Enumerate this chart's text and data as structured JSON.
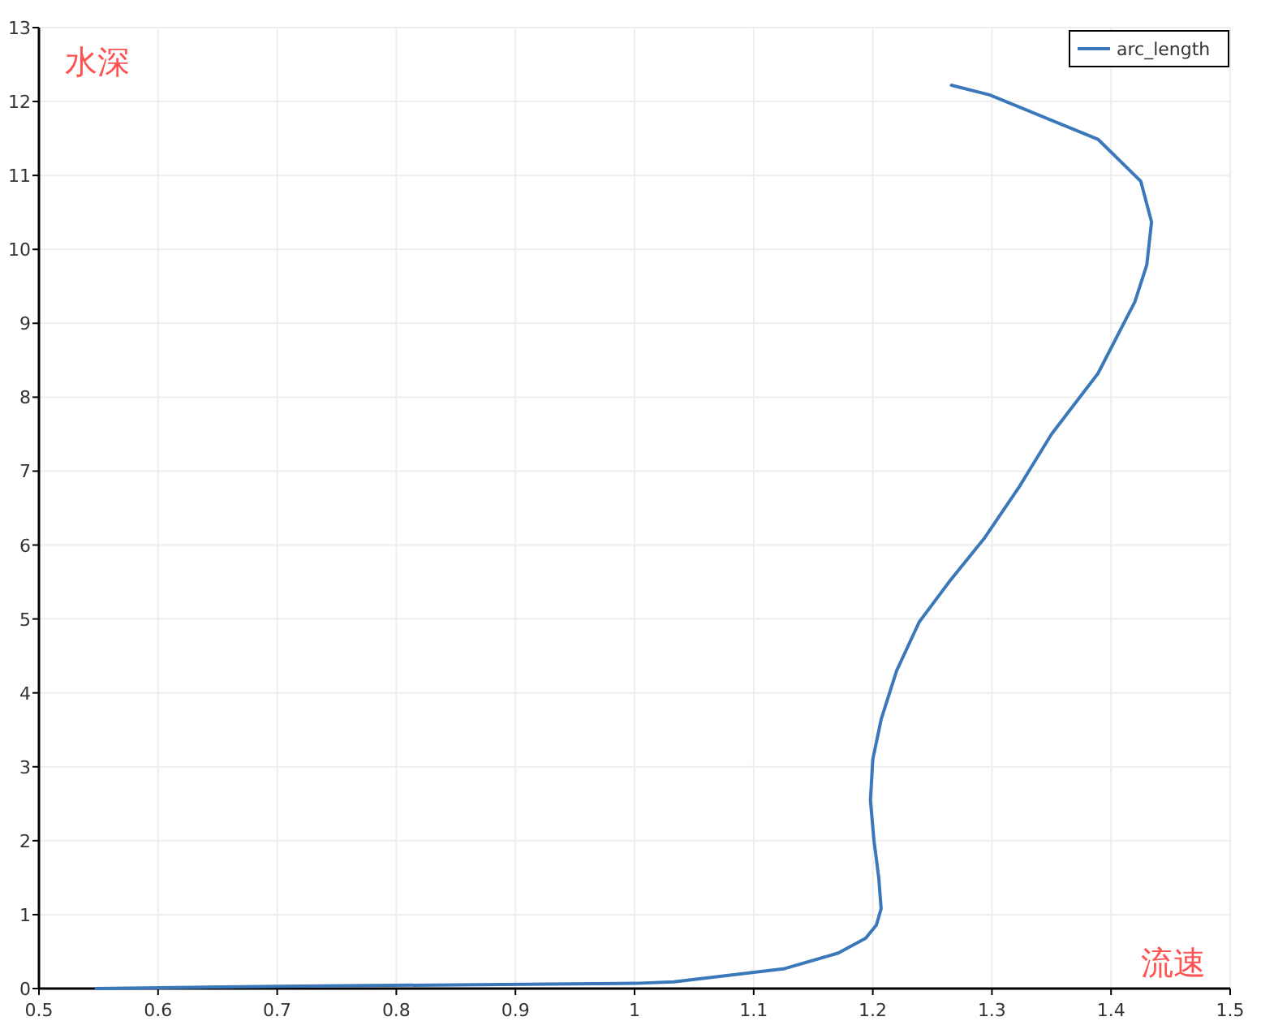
{
  "chart_data": {
    "type": "line",
    "xlabel": "流速",
    "ylabel": "水深",
    "xlim": [
      0.5,
      1.5
    ],
    "xticks": [
      0.5,
      0.6,
      0.7,
      0.8,
      0.9,
      1,
      1.1,
      1.2,
      1.3,
      1.4,
      1.5
    ],
    "ylim": [
      0,
      13
    ],
    "yticks": [
      0,
      1,
      2,
      3,
      4,
      5,
      6,
      7,
      8,
      9,
      10,
      11,
      12,
      13
    ],
    "grid": true,
    "legend": "top right",
    "marker": "none",
    "line_style": "solid",
    "series": [
      {
        "name": "arc_length",
        "color": "#3a78b9",
        "x": [
          0.548,
          0.7,
          0.85,
          1.0,
          1.033,
          1.126,
          1.171,
          1.194,
          1.203,
          1.207,
          1.205,
          1.201,
          1.198,
          1.2,
          1.207,
          1.22,
          1.239,
          1.264,
          1.294,
          1.323,
          1.35,
          1.389,
          1.42,
          1.43,
          1.434,
          1.425,
          1.389,
          1.298,
          1.266
        ],
        "values": [
          0,
          0.03,
          0.05,
          0.07,
          0.09,
          0.27,
          0.48,
          0.68,
          0.86,
          1.08,
          1.5,
          2.0,
          2.55,
          3.1,
          3.64,
          4.3,
          4.96,
          5.5,
          6.1,
          6.79,
          7.5,
          8.32,
          9.29,
          9.79,
          10.37,
          10.92,
          11.49,
          12.09,
          12.22
        ]
      }
    ]
  }
}
